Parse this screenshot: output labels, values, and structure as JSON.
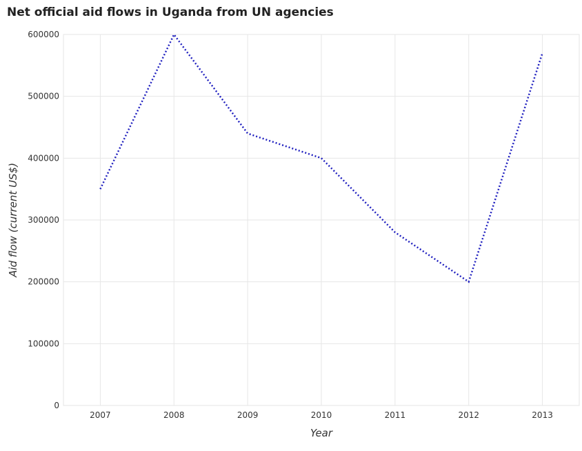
{
  "chart_data": {
    "type": "line",
    "title": "Net official aid flows in Uganda from UN agencies",
    "xlabel": "Year",
    "ylabel": "Aid flow (current US$)",
    "categories": [
      "2007",
      "2008",
      "2009",
      "2010",
      "2011",
      "2012",
      "2013"
    ],
    "series": [
      {
        "values": [
          350000,
          600000,
          440000,
          400000,
          280000,
          200000,
          570000
        ],
        "color": "#1f1fbf"
      }
    ],
    "ylim": [
      0,
      600000
    ],
    "yticks": [
      0,
      100000,
      200000,
      300000,
      400000,
      500000,
      600000
    ],
    "ytick_labels": [
      "0",
      "100000",
      "200000",
      "300000",
      "400000",
      "500000",
      "600000"
    ],
    "grid": true,
    "legend": "none"
  }
}
